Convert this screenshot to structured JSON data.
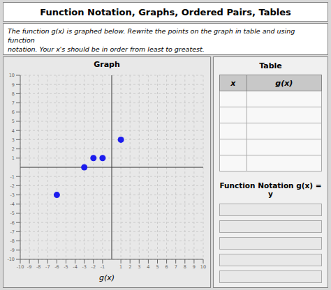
{
  "chart_data": {
    "type": "scatter",
    "title": "Function Notation, Graphs, Ordered Pairs, Tables",
    "subtitle": "The function g(x) is graphed below. Rewrite the points on the graph in table and using function\nnotation. Your x's should be in order from least to greatest.",
    "annotations": [
      "Graph",
      "Table",
      "x",
      "g(x)",
      "Function Notation g(x) = y"
    ],
    "xlabel": "g(x)",
    "x": [
      -6,
      -3,
      -2,
      -1,
      1
    ],
    "values": [
      -3,
      0,
      1,
      1,
      3
    ],
    "color": "#1c1cee",
    "xlim": [
      -10,
      10
    ],
    "ylim": [
      -10,
      10
    ],
    "xticks": [
      -10,
      -9,
      -8,
      -7,
      -6,
      -5,
      -4,
      -3,
      -2,
      -1,
      1,
      2,
      3,
      4,
      5,
      6,
      7,
      8,
      9,
      10
    ],
    "yticks": [
      -10,
      -9,
      -8,
      -7,
      -6,
      -5,
      -4,
      -3,
      -2,
      -1,
      1,
      2,
      3,
      4,
      5,
      6,
      7,
      8,
      9,
      10
    ],
    "grid": true
  }
}
